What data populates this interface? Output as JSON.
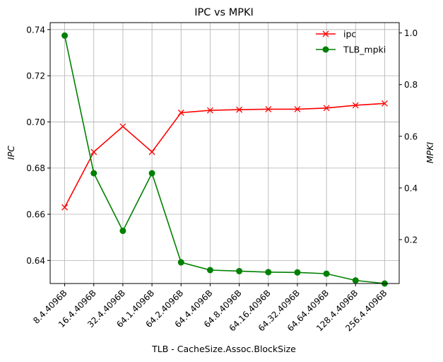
{
  "chart_data": {
    "type": "line",
    "title": "IPC vs MPKI",
    "xlabel": "TLB - CacheSize.Assoc.BlockSize",
    "ylabel_left": "IPC",
    "ylabel_right": "MPKI",
    "categories": [
      "8.4.4096B",
      "16.4.4096B",
      "32.4.4096B",
      "64.1.4096B",
      "64.2.4096B",
      "64.4.4096B",
      "64.8.4096B",
      "64.16.4096B",
      "64.32.4096B",
      "64.64.4096B",
      "128.4.4096B",
      "256.4.4096B"
    ],
    "left_axis": {
      "ylim": [
        0.63,
        0.743
      ],
      "ticks": [
        0.64,
        0.66,
        0.68,
        0.7,
        0.72,
        0.74
      ],
      "tick_labels": [
        "0.64",
        "0.66",
        "0.68",
        "0.70",
        "0.72",
        "0.74"
      ]
    },
    "right_axis": {
      "ylim": [
        0.03,
        1.04
      ],
      "ticks": [
        0.2,
        0.4,
        0.6,
        0.8,
        1.0
      ],
      "tick_labels": [
        "0.2",
        "0.4",
        "0.6",
        "0.8",
        "1.0"
      ]
    },
    "grid": true,
    "legend_position": "top-right",
    "series": [
      {
        "name": "ipc",
        "axis": "left",
        "color": "#ff0000",
        "marker": "x",
        "values": [
          0.663,
          0.687,
          0.698,
          0.687,
          0.704,
          0.705,
          0.7053,
          0.7055,
          0.7055,
          0.706,
          0.7072,
          0.708
        ]
      },
      {
        "name": "TLB_mpki",
        "axis": "right",
        "color": "#008000",
        "marker": "o",
        "values": [
          0.99,
          0.457,
          0.234,
          0.457,
          0.112,
          0.082,
          0.078,
          0.074,
          0.073,
          0.068,
          0.042,
          0.03
        ]
      }
    ]
  }
}
